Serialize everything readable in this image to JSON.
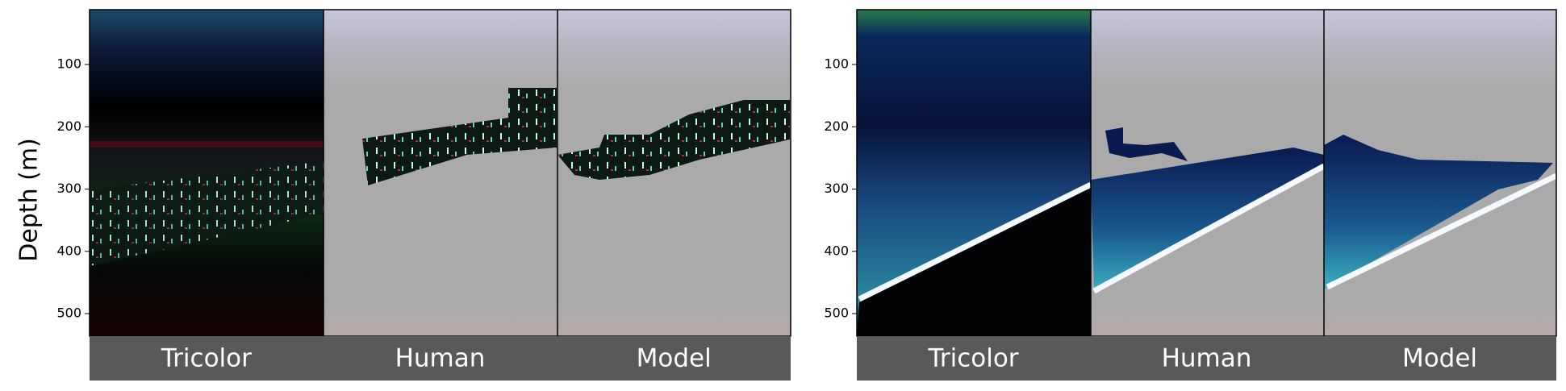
{
  "y_label": "Depth (m)",
  "panels": [
    {
      "yticks": [
        100,
        200,
        300,
        400,
        500
      ],
      "labels": [
        "Tricolor",
        "Human",
        "Model"
      ]
    },
    {
      "yticks": [
        100,
        200,
        300,
        400,
        500
      ],
      "labels": [
        "Tricolor",
        "Human",
        "Model"
      ]
    }
  ]
}
